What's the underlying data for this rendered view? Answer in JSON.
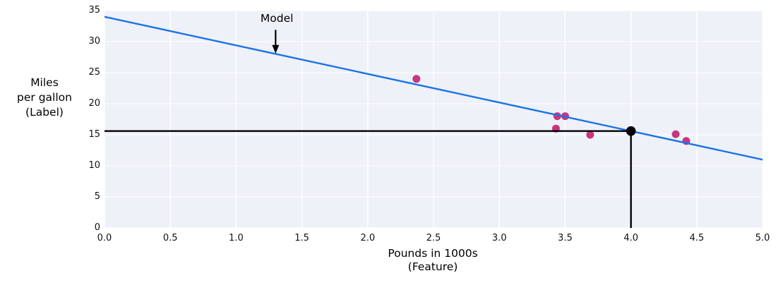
{
  "chart_data": {
    "type": "scatter",
    "title": "",
    "xlabel_lines": [
      "Pounds in 1000s",
      "(Feature)"
    ],
    "ylabel_lines": [
      "Miles",
      "per gallon",
      "(Label)"
    ],
    "xlim": [
      0,
      5
    ],
    "ylim": [
      0,
      35
    ],
    "grid": true,
    "legend": "none",
    "xticks": {
      "values": [
        0,
        0.5,
        1,
        1.5,
        2,
        2.5,
        3,
        3.5,
        4,
        4.5,
        5
      ],
      "labels": [
        "0.0",
        "0.5",
        "1.0",
        "1.5",
        "2.0",
        "2.5",
        "3.0",
        "3.5",
        "4.0",
        "4.5",
        "5.0"
      ]
    },
    "yticks": {
      "values": [
        0,
        5,
        10,
        15,
        20,
        25,
        30,
        35
      ],
      "labels": [
        "0",
        "5",
        "10",
        "15",
        "20",
        "25",
        "30",
        "35"
      ]
    },
    "scatter_points": [
      [
        2.37,
        24
      ],
      [
        3.44,
        18
      ],
      [
        3.5,
        18
      ],
      [
        3.43,
        16
      ],
      [
        3.69,
        15
      ],
      [
        4.34,
        15.1
      ],
      [
        4.42,
        14
      ]
    ],
    "model_line": {
      "x": [
        0,
        5
      ],
      "y": [
        34,
        11
      ]
    },
    "prediction": {
      "x": 4.0,
      "y": 15.6
    },
    "annotation": {
      "text": "Model",
      "text_xy": [
        1.31,
        33.8
      ],
      "arrow_start_xy": [
        1.3,
        31.9
      ],
      "arrow_tip_xy": [
        1.3,
        28.1
      ]
    },
    "colors": {
      "plot_background": "#eef1f7",
      "gridline": "#ffffff",
      "model_line": "#1a73e8",
      "scatter_point": "#c9367e",
      "prediction": "#000000",
      "text": "#000000"
    }
  }
}
